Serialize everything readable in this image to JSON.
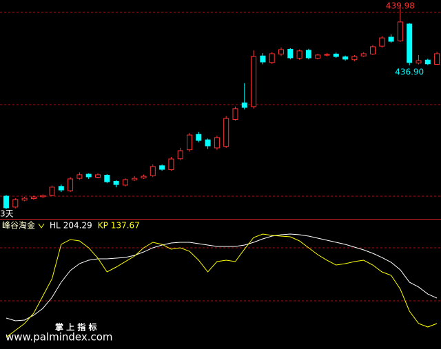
{
  "chart_data": [
    {
      "type": "candlestick",
      "period": "3天",
      "categories": [
        null,
        null,
        null,
        null,
        null,
        null,
        null,
        null,
        null,
        null,
        null,
        null,
        null,
        null,
        null,
        null,
        null,
        null,
        null,
        null,
        null,
        null,
        null,
        null,
        null,
        null,
        null,
        null,
        null,
        null,
        null,
        null,
        null,
        null,
        null,
        null,
        null,
        null,
        null,
        null,
        null,
        null,
        null,
        null,
        null,
        null,
        null,
        null
      ],
      "open": [
        429.93,
        429.35,
        429.72,
        429.8,
        429.9,
        429.98,
        430.45,
        430.22,
        430.88,
        431.1,
        430.94,
        431.05,
        430.72,
        430.52,
        430.8,
        430.9,
        431.02,
        431.55,
        431.34,
        431.92,
        432.4,
        433.22,
        432.93,
        432.5,
        432.58,
        434.02,
        434.9,
        434.7,
        437.4,
        437.05,
        437.5,
        437.76,
        437.28,
        437.7,
        437.28,
        437.44,
        437.5,
        437.35,
        437.2,
        437.4,
        437.5,
        437.92,
        438.4,
        438.2,
        439.1,
        437.02,
        437.18,
        436.95
      ],
      "close": [
        429.31,
        429.75,
        429.82,
        429.89,
        429.97,
        430.41,
        430.26,
        430.85,
        431.07,
        430.96,
        431.07,
        430.7,
        430.55,
        430.81,
        430.88,
        430.99,
        431.51,
        431.36,
        431.91,
        432.35,
        433.19,
        432.9,
        432.61,
        433.05,
        434.07,
        434.59,
        434.66,
        437.37,
        437.08,
        437.52,
        437.74,
        437.3,
        437.67,
        437.3,
        437.45,
        437.48,
        437.37,
        437.23,
        437.37,
        437.52,
        437.89,
        438.36,
        438.18,
        439.21,
        437.05,
        437.15,
        436.98,
        437.52
      ],
      "high": [
        430.0,
        429.82,
        429.9,
        429.96,
        430.02,
        430.5,
        430.55,
        430.95,
        431.2,
        431.15,
        431.15,
        431.1,
        430.78,
        430.88,
        431.0,
        431.08,
        431.62,
        431.62,
        432.02,
        432.5,
        433.3,
        433.35,
        433.0,
        433.15,
        434.2,
        434.7,
        435.95,
        437.7,
        437.55,
        437.6,
        437.85,
        437.82,
        437.75,
        437.78,
        437.52,
        437.55,
        437.58,
        437.42,
        437.45,
        437.6,
        437.98,
        438.45,
        438.55,
        439.98,
        439.15,
        437.45,
        437.25,
        437.62
      ],
      "low": [
        429.24,
        429.28,
        429.66,
        429.74,
        429.84,
        429.92,
        430.15,
        430.15,
        430.8,
        430.85,
        430.88,
        430.62,
        430.4,
        430.45,
        430.74,
        430.85,
        430.95,
        431.28,
        431.28,
        431.85,
        432.3,
        432.8,
        432.45,
        432.4,
        432.5,
        433.95,
        434.55,
        434.6,
        436.95,
        436.98,
        437.4,
        437.22,
        437.2,
        437.22,
        437.22,
        437.38,
        437.3,
        437.15,
        437.12,
        437.35,
        437.45,
        437.85,
        438.1,
        438.15,
        436.9,
        436.95,
        436.92,
        436.93
      ],
      "up_color": "#ff3232",
      "down_color": "#00ffff",
      "ylim": [
        428.72,
        440.38
      ],
      "annotations": [
        {
          "value": 439.98,
          "label": "439.98",
          "color": "#ff3232"
        },
        {
          "value": 436.9,
          "label": "436.90",
          "color": "#00ffff"
        }
      ]
    },
    {
      "type": "line",
      "title": "峰谷淘金",
      "series": [
        {
          "name": "HL",
          "color": "#ffffff",
          "values": [
            152.1,
            144.9,
            146.7,
            159.3,
            177.3,
            206.1,
            245.8,
            276.4,
            294.4,
            303.4,
            307.0,
            307.0,
            308.8,
            310.6,
            316.0,
            325.0,
            335.9,
            343.1,
            348.5,
            350.3,
            350.3,
            346.7,
            343.1,
            339.5,
            339.5,
            339.5,
            343.1,
            350.3,
            359.3,
            366.5,
            370.1,
            371.9,
            370.1,
            366.5,
            361.1,
            355.7,
            350.3,
            344.9,
            337.7,
            330.5,
            321.4,
            310.6,
            298.0,
            278.2,
            245.8,
            233.2,
            215.1,
            204.29
          ]
        },
        {
          "name": "KP",
          "color": "#ffff00",
          "values": [
            101.6,
            119.6,
            137.7,
            164.7,
            209.7,
            254.8,
            344.9,
            357.5,
            353.9,
            335.9,
            308.8,
            272.8,
            285.4,
            299.8,
            314.2,
            335.9,
            350.3,
            344.9,
            332.3,
            335.9,
            326.8,
            303.4,
            272.8,
            299.8,
            303.4,
            299.8,
            332.3,
            362.9,
            371.9,
            368.3,
            366.5,
            364.7,
            353.9,
            335.9,
            317.8,
            303.4,
            290.8,
            294.4,
            299.8,
            303.4,
            290.8,
            272.8,
            263.8,
            227.7,
            170.1,
            137.7,
            128.6,
            137.67
          ]
        }
      ],
      "ylim": [
        74.6,
        379.1
      ]
    }
  ],
  "watermark": {
    "title": "掌 上 指 标",
    "url": "www.palmindex.com"
  }
}
